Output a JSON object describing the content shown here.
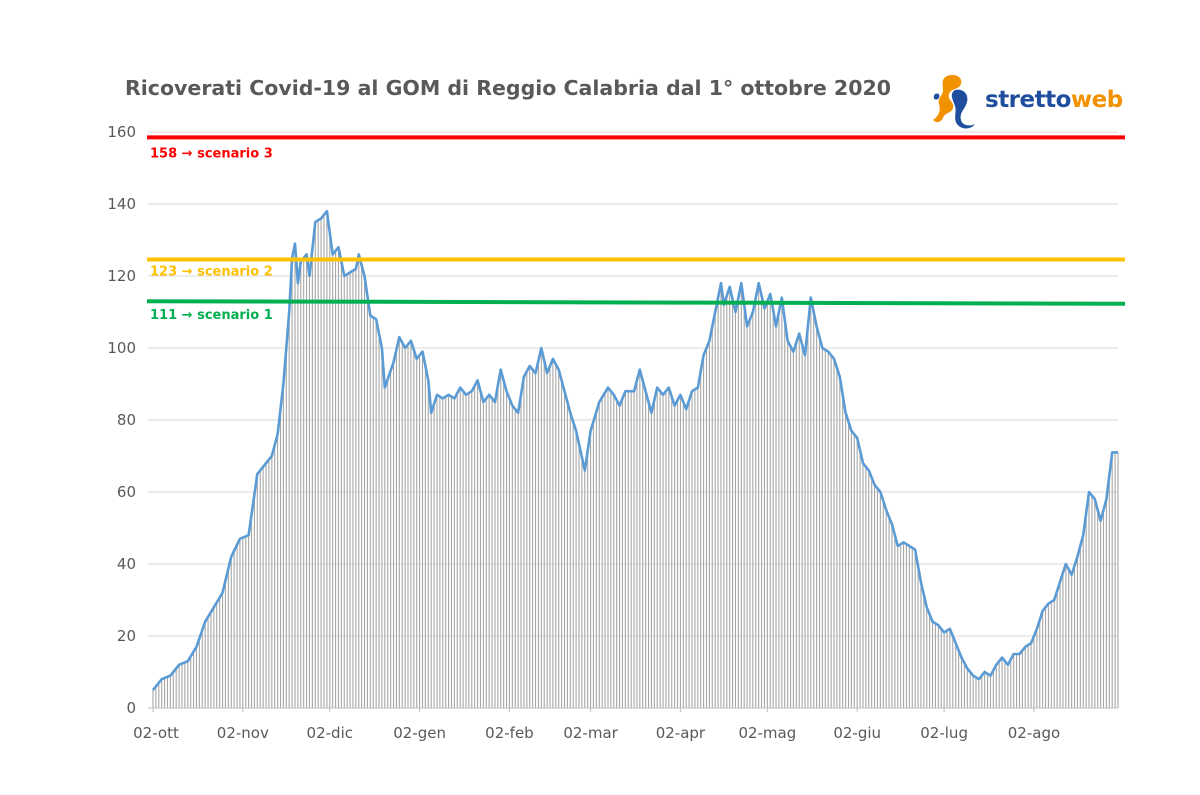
{
  "chart_data": {
    "type": "bar",
    "title": "Ricoverati Covid-19 al GOM di Reggio Calabria dal 1° ottobre 2020",
    "xlabel": "",
    "ylabel": "",
    "ylim": [
      0,
      160
    ],
    "yticks": [
      0,
      20,
      40,
      60,
      80,
      100,
      120,
      140,
      160
    ],
    "grid": true,
    "x_tick_labels": [
      "02-ott",
      "02-nov",
      "02-dic",
      "02-gen",
      "02-feb",
      "02-mar",
      "02-apr",
      "02-mag",
      "02-giu",
      "02-lug",
      "02-ago"
    ],
    "x_start": "2020-10-02",
    "x_end": "2021-08-31",
    "series": [
      {
        "type": "bar+line",
        "color": "#a6a6a6",
        "line_color": "#5b9bd5",
        "points": [
          [
            "2020-10-02",
            5
          ],
          [
            "2020-10-05",
            8
          ],
          [
            "2020-10-08",
            9
          ],
          [
            "2020-10-11",
            12
          ],
          [
            "2020-10-14",
            13
          ],
          [
            "2020-10-17",
            17
          ],
          [
            "2020-10-20",
            24
          ],
          [
            "2020-10-23",
            28
          ],
          [
            "2020-10-26",
            32
          ],
          [
            "2020-10-29",
            42
          ],
          [
            "2020-11-01",
            47
          ],
          [
            "2020-11-04",
            48
          ],
          [
            "2020-11-07",
            65
          ],
          [
            "2020-11-10",
            68
          ],
          [
            "2020-11-12",
            70
          ],
          [
            "2020-11-14",
            76
          ],
          [
            "2020-11-16",
            90
          ],
          [
            "2020-11-18",
            110
          ],
          [
            "2020-11-19",
            125
          ],
          [
            "2020-11-20",
            129
          ],
          [
            "2020-11-21",
            118
          ],
          [
            "2020-11-22",
            124
          ],
          [
            "2020-11-24",
            126
          ],
          [
            "2020-11-25",
            120
          ],
          [
            "2020-11-27",
            135
          ],
          [
            "2020-11-29",
            136
          ],
          [
            "2020-12-01",
            138
          ],
          [
            "2020-12-02",
            132
          ],
          [
            "2020-12-03",
            126
          ],
          [
            "2020-12-05",
            128
          ],
          [
            "2020-12-07",
            120
          ],
          [
            "2020-12-09",
            121
          ],
          [
            "2020-12-11",
            122
          ],
          [
            "2020-12-12",
            126
          ],
          [
            "2020-12-14",
            120
          ],
          [
            "2020-12-16",
            109
          ],
          [
            "2020-12-18",
            108
          ],
          [
            "2020-12-20",
            100
          ],
          [
            "2020-12-21",
            89
          ],
          [
            "2020-12-24",
            96
          ],
          [
            "2020-12-26",
            103
          ],
          [
            "2020-12-28",
            100
          ],
          [
            "2020-12-30",
            102
          ],
          [
            "2021-01-01",
            97
          ],
          [
            "2021-01-03",
            99
          ],
          [
            "2021-01-05",
            91
          ],
          [
            "2021-01-06",
            82
          ],
          [
            "2021-01-08",
            87
          ],
          [
            "2021-01-10",
            86
          ],
          [
            "2021-01-12",
            87
          ],
          [
            "2021-01-14",
            86
          ],
          [
            "2021-01-16",
            89
          ],
          [
            "2021-01-18",
            87
          ],
          [
            "2021-01-20",
            88
          ],
          [
            "2021-01-22",
            91
          ],
          [
            "2021-01-24",
            85
          ],
          [
            "2021-01-26",
            87
          ],
          [
            "2021-01-28",
            85
          ],
          [
            "2021-01-30",
            94
          ],
          [
            "2021-02-01",
            88
          ],
          [
            "2021-02-03",
            84
          ],
          [
            "2021-02-05",
            82
          ],
          [
            "2021-02-07",
            92
          ],
          [
            "2021-02-09",
            95
          ],
          [
            "2021-02-11",
            93
          ],
          [
            "2021-02-13",
            100
          ],
          [
            "2021-02-15",
            93
          ],
          [
            "2021-02-17",
            97
          ],
          [
            "2021-02-19",
            94
          ],
          [
            "2021-02-21",
            88
          ],
          [
            "2021-02-23",
            82
          ],
          [
            "2021-02-25",
            77
          ],
          [
            "2021-02-28",
            66
          ],
          [
            "2021-03-02",
            77
          ],
          [
            "2021-03-05",
            85
          ],
          [
            "2021-03-08",
            89
          ],
          [
            "2021-03-10",
            87
          ],
          [
            "2021-03-12",
            84
          ],
          [
            "2021-03-14",
            88
          ],
          [
            "2021-03-17",
            88
          ],
          [
            "2021-03-19",
            94
          ],
          [
            "2021-03-21",
            88
          ],
          [
            "2021-03-23",
            82
          ],
          [
            "2021-03-25",
            89
          ],
          [
            "2021-03-27",
            87
          ],
          [
            "2021-03-29",
            89
          ],
          [
            "2021-03-31",
            84
          ],
          [
            "2021-04-02",
            87
          ],
          [
            "2021-04-04",
            83
          ],
          [
            "2021-04-06",
            88
          ],
          [
            "2021-04-08",
            89
          ],
          [
            "2021-04-10",
            98
          ],
          [
            "2021-04-12",
            102
          ],
          [
            "2021-04-14",
            110
          ],
          [
            "2021-04-16",
            118
          ],
          [
            "2021-04-17",
            112
          ],
          [
            "2021-04-19",
            117
          ],
          [
            "2021-04-21",
            110
          ],
          [
            "2021-04-23",
            118
          ],
          [
            "2021-04-25",
            106
          ],
          [
            "2021-04-27",
            110
          ],
          [
            "2021-04-29",
            118
          ],
          [
            "2021-05-01",
            111
          ],
          [
            "2021-05-03",
            115
          ],
          [
            "2021-05-05",
            106
          ],
          [
            "2021-05-07",
            114
          ],
          [
            "2021-05-09",
            102
          ],
          [
            "2021-05-11",
            99
          ],
          [
            "2021-05-13",
            104
          ],
          [
            "2021-05-15",
            98
          ],
          [
            "2021-05-17",
            114
          ],
          [
            "2021-05-19",
            106
          ],
          [
            "2021-05-21",
            100
          ],
          [
            "2021-05-23",
            99
          ],
          [
            "2021-05-25",
            97
          ],
          [
            "2021-05-27",
            92
          ],
          [
            "2021-05-29",
            82
          ],
          [
            "2021-05-31",
            77
          ],
          [
            "2021-06-02",
            75
          ],
          [
            "2021-06-04",
            68
          ],
          [
            "2021-06-06",
            66
          ],
          [
            "2021-06-08",
            62
          ],
          [
            "2021-06-10",
            60
          ],
          [
            "2021-06-12",
            55
          ],
          [
            "2021-06-14",
            51
          ],
          [
            "2021-06-16",
            45
          ],
          [
            "2021-06-18",
            46
          ],
          [
            "2021-06-20",
            45
          ],
          [
            "2021-06-22",
            44
          ],
          [
            "2021-06-24",
            35
          ],
          [
            "2021-06-26",
            28
          ],
          [
            "2021-06-28",
            24
          ],
          [
            "2021-06-30",
            23
          ],
          [
            "2021-07-02",
            21
          ],
          [
            "2021-07-04",
            22
          ],
          [
            "2021-07-06",
            18
          ],
          [
            "2021-07-08",
            14
          ],
          [
            "2021-07-10",
            11
          ],
          [
            "2021-07-12",
            9
          ],
          [
            "2021-07-14",
            8
          ],
          [
            "2021-07-16",
            10
          ],
          [
            "2021-07-18",
            9
          ],
          [
            "2021-07-20",
            12
          ],
          [
            "2021-07-22",
            14
          ],
          [
            "2021-07-24",
            12
          ],
          [
            "2021-07-26",
            15
          ],
          [
            "2021-07-28",
            15
          ],
          [
            "2021-07-30",
            17
          ],
          [
            "2021-08-01",
            18
          ],
          [
            "2021-08-03",
            22
          ],
          [
            "2021-08-05",
            27
          ],
          [
            "2021-08-07",
            29
          ],
          [
            "2021-08-09",
            30
          ],
          [
            "2021-08-11",
            35
          ],
          [
            "2021-08-13",
            40
          ],
          [
            "2021-08-15",
            37
          ],
          [
            "2021-08-17",
            42
          ],
          [
            "2021-08-19",
            48
          ],
          [
            "2021-08-21",
            60
          ],
          [
            "2021-08-23",
            58
          ],
          [
            "2021-08-25",
            52
          ],
          [
            "2021-08-27",
            58
          ],
          [
            "2021-08-29",
            71
          ],
          [
            "2021-08-31",
            71
          ]
        ]
      }
    ],
    "reference_lines": [
      {
        "value": 158,
        "label": "158 → scenario 3",
        "color": "#ff0000"
      },
      {
        "value": 123,
        "label": "123 → scenario 2",
        "color": "#ffc000"
      },
      {
        "value": 111,
        "label": "111 → scenario 1",
        "color": "#00b050"
      }
    ]
  },
  "logo": {
    "text_part1": "stretto",
    "text_part2": "web",
    "color1": "#1f4e9e",
    "color2": "#f39200"
  }
}
